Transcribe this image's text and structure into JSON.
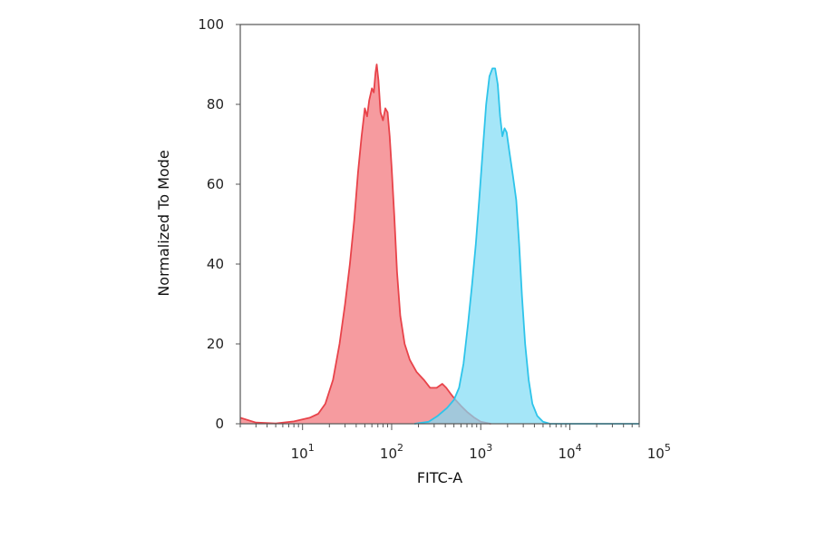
{
  "chart_data": {
    "type": "area",
    "xlabel": "FITC-A",
    "ylabel": "Normalized To Mode",
    "x_scale": "log",
    "xlim": [
      2,
      60000
    ],
    "ylim": [
      0,
      100
    ],
    "y_ticks": [
      {
        "value": 0,
        "label": "0"
      },
      {
        "value": 20,
        "label": "20"
      },
      {
        "value": 40,
        "label": "40"
      },
      {
        "value": 60,
        "label": "60"
      },
      {
        "value": 80,
        "label": "80"
      },
      {
        "value": 100,
        "label": "100"
      }
    ],
    "x_ticks": [
      {
        "value": 10,
        "base": "10",
        "exp": "1"
      },
      {
        "value": 100,
        "base": "10",
        "exp": "2"
      },
      {
        "value": 1000,
        "base": "10",
        "exp": "3"
      },
      {
        "value": 10000,
        "base": "10",
        "exp": "4"
      },
      {
        "value": 100000,
        "base": "10",
        "exp": "5"
      }
    ],
    "grid": false,
    "series": [
      {
        "color": "#e8434a",
        "fill": "#f48a8e",
        "points": [
          [
            2,
            1.5
          ],
          [
            3,
            0.3
          ],
          [
            5,
            0.1
          ],
          [
            8,
            0.6
          ],
          [
            12,
            1.5
          ],
          [
            15,
            2.5
          ],
          [
            18,
            5
          ],
          [
            22,
            11
          ],
          [
            26,
            20
          ],
          [
            30,
            30
          ],
          [
            34,
            40
          ],
          [
            38,
            51
          ],
          [
            42,
            63
          ],
          [
            46,
            72
          ],
          [
            50,
            79
          ],
          [
            53,
            77
          ],
          [
            56,
            81
          ],
          [
            60,
            84
          ],
          [
            63,
            83
          ],
          [
            66,
            88
          ],
          [
            68,
            90
          ],
          [
            71,
            86
          ],
          [
            75,
            78
          ],
          [
            80,
            76
          ],
          [
            85,
            79
          ],
          [
            90,
            78
          ],
          [
            95,
            72
          ],
          [
            100,
            64
          ],
          [
            107,
            52
          ],
          [
            115,
            38
          ],
          [
            125,
            27
          ],
          [
            140,
            20
          ],
          [
            160,
            16
          ],
          [
            190,
            13
          ],
          [
            230,
            11
          ],
          [
            270,
            9
          ],
          [
            320,
            9
          ],
          [
            370,
            10
          ],
          [
            410,
            9
          ],
          [
            460,
            7.5
          ],
          [
            520,
            6
          ],
          [
            600,
            4.5
          ],
          [
            700,
            3
          ],
          [
            850,
            1.5
          ],
          [
            1000,
            0.5
          ],
          [
            1300,
            0
          ]
        ]
      },
      {
        "color": "#2ec4ea",
        "fill": "#7fdcf5",
        "points": [
          [
            180,
            0
          ],
          [
            260,
            0.5
          ],
          [
            330,
            2
          ],
          [
            420,
            4
          ],
          [
            500,
            6
          ],
          [
            570,
            9
          ],
          [
            640,
            15
          ],
          [
            720,
            25
          ],
          [
            800,
            35
          ],
          [
            880,
            45
          ],
          [
            960,
            56
          ],
          [
            1050,
            68
          ],
          [
            1150,
            80
          ],
          [
            1250,
            87
          ],
          [
            1350,
            89
          ],
          [
            1450,
            89
          ],
          [
            1550,
            85
          ],
          [
            1650,
            77
          ],
          [
            1750,
            72
          ],
          [
            1850,
            74
          ],
          [
            1950,
            73
          ],
          [
            2100,
            68
          ],
          [
            2300,
            62
          ],
          [
            2500,
            56
          ],
          [
            2700,
            45
          ],
          [
            2900,
            32
          ],
          [
            3150,
            20
          ],
          [
            3450,
            11
          ],
          [
            3800,
            5
          ],
          [
            4300,
            2
          ],
          [
            5000,
            0.5
          ],
          [
            6000,
            0
          ],
          [
            60000,
            0
          ]
        ]
      }
    ]
  }
}
